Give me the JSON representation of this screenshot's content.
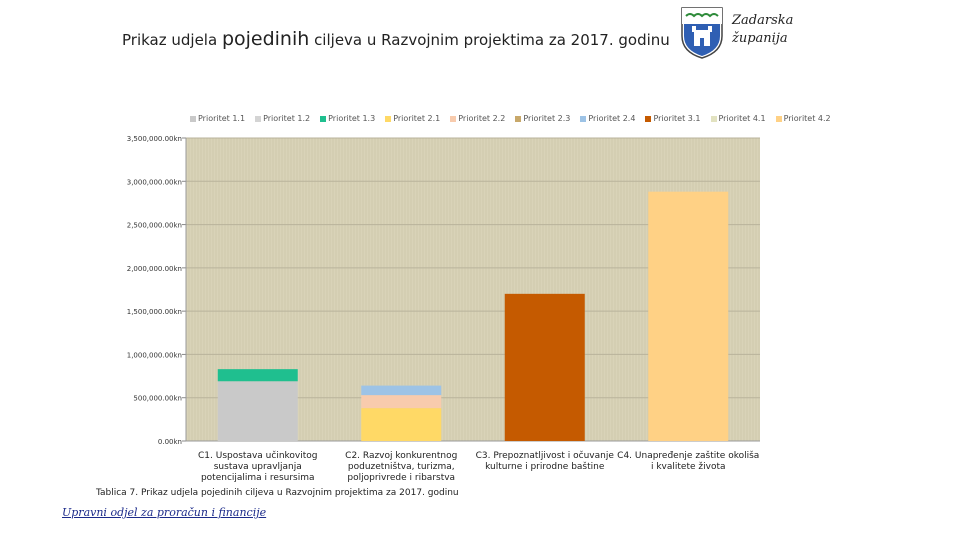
{
  "header": {
    "title_part1": "Prikaz udjela ",
    "title_part2": "pojedinih",
    "title_part3": " ciljeva u Razvojnim projektima za 2017. godinu",
    "brand_line1": "Zadarska",
    "brand_line2": "županija"
  },
  "caption": "Tablica 7. Prikaz udjela pojedinih ciljeva u Razvojnim projektima za 2017. godinu",
  "footer": "Upravni odjel za proračun i financije",
  "colors": {
    "plot_bg": "#d9d3b8",
    "grid": "#b9b39b"
  },
  "chart_data": {
    "type": "bar",
    "stacked": true,
    "categories": [
      "C1. Uspostava učinkovitog sustava upravljanja potencijalima i resursima",
      "C2. Razvoj konkurentnog poduzetništva, turizma, poljoprivrede i ribarstva",
      "C3. Prepoznatljivost i očuvanje kulturne i prirodne baštine",
      "C4. Unapređenje zaštite okoliša i kvalitete života"
    ],
    "category_lines": [
      [
        "C1. Uspostava učinkovitog",
        "sustava upravljanja",
        "potencijalima i resursima"
      ],
      [
        "C2. Razvoj konkurentnog",
        "poduzetništva, turizma,",
        "poljoprivrede i ribarstva"
      ],
      [
        "C3. Prepoznatljivost i očuvanje",
        "kulturne i prirodne baštine"
      ],
      [
        "C4. Unapređenje zaštite okoliša",
        "i kvalitete života"
      ]
    ],
    "series": [
      {
        "name": "Prioritet 1.1",
        "color": "#c9c9c9",
        "values": [
          690000,
          0,
          0,
          0
        ]
      },
      {
        "name": "Prioritet 1.2",
        "color": "#d4d4d4",
        "values": [
          0,
          0,
          0,
          0
        ]
      },
      {
        "name": "Prioritet 1.3",
        "color": "#1fbf8f",
        "values": [
          140000,
          0,
          0,
          0
        ]
      },
      {
        "name": "Prioritet 2.1",
        "color": "#ffd966",
        "values": [
          0,
          380000,
          0,
          0
        ]
      },
      {
        "name": "Prioritet 2.2",
        "color": "#f8cbad",
        "values": [
          0,
          150000,
          0,
          0
        ]
      },
      {
        "name": "Prioritet 2.3",
        "color": "#c8a86a",
        "values": [
          0,
          0,
          0,
          0
        ]
      },
      {
        "name": "Prioritet 2.4",
        "color": "#9dc3e6",
        "values": [
          0,
          110000,
          0,
          0
        ]
      },
      {
        "name": "Prioritet 3.1",
        "color": "#c55a00",
        "values": [
          0,
          0,
          1700000,
          0
        ]
      },
      {
        "name": "Prioritet 4.1",
        "color": "#e2e2c0",
        "values": [
          0,
          0,
          0,
          0
        ]
      },
      {
        "name": "Prioritet 4.2",
        "color": "#ffd185",
        "values": [
          0,
          0,
          0,
          2880000
        ]
      }
    ],
    "ylim": [
      0,
      3500000
    ],
    "yticks": [
      0,
      500000,
      1000000,
      1500000,
      2000000,
      2500000,
      3000000,
      3500000
    ],
    "ytick_labels": [
      "0.00kn",
      "500,000.00kn",
      "1,000,000.00kn",
      "1,500,000.00kn",
      "2,000,000.00kn",
      "2,500,000.00kn",
      "3,000,000.00kn",
      "3,500,000.00kn"
    ],
    "grid": true,
    "legend_position": "top"
  }
}
